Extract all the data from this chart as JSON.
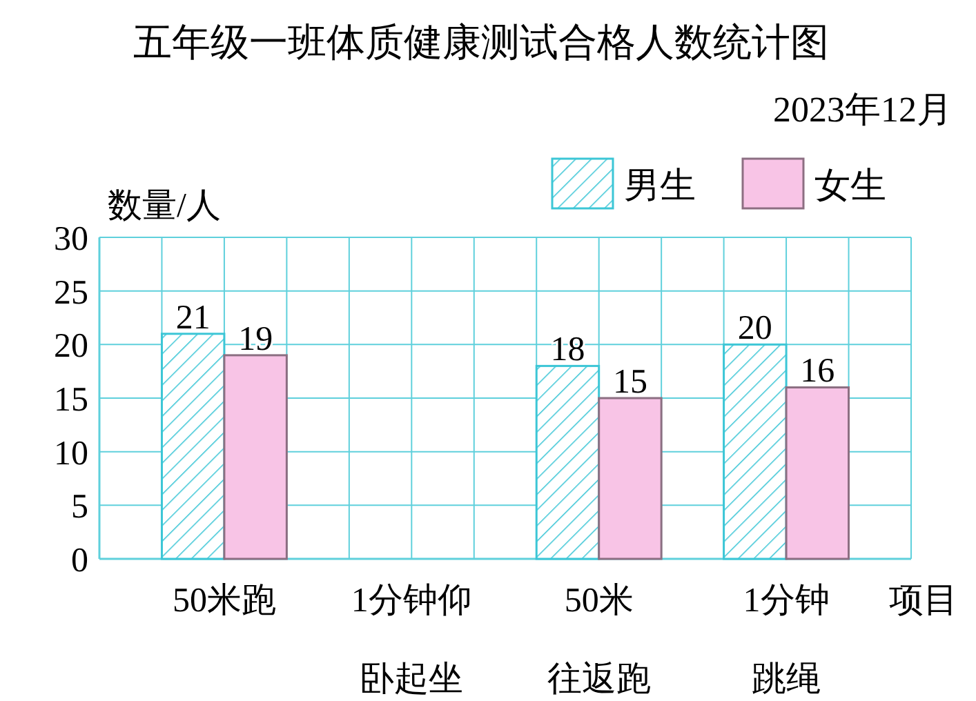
{
  "chart_data": {
    "type": "bar",
    "title": "五年级一班体质健康测试合格人数统计图",
    "subtitle": "2023年12月",
    "xlabel": "项目",
    "ylabel": "数量/人",
    "categories": [
      "50米跑",
      "1分钟仰卧起坐",
      "50米往返跑",
      "1分钟跳绳"
    ],
    "series": [
      {
        "name": "男生",
        "color": "#3cc6d6",
        "values": [
          21,
          null,
          18,
          20
        ]
      },
      {
        "name": "女生",
        "color": "#f8c4e6",
        "values": [
          19,
          null,
          15,
          16
        ]
      }
    ],
    "ylim": [
      0,
      30
    ],
    "yticks": [
      0,
      5,
      10,
      15,
      20,
      25,
      30
    ],
    "grid": true,
    "legend": "top right",
    "data_labels": true
  }
}
